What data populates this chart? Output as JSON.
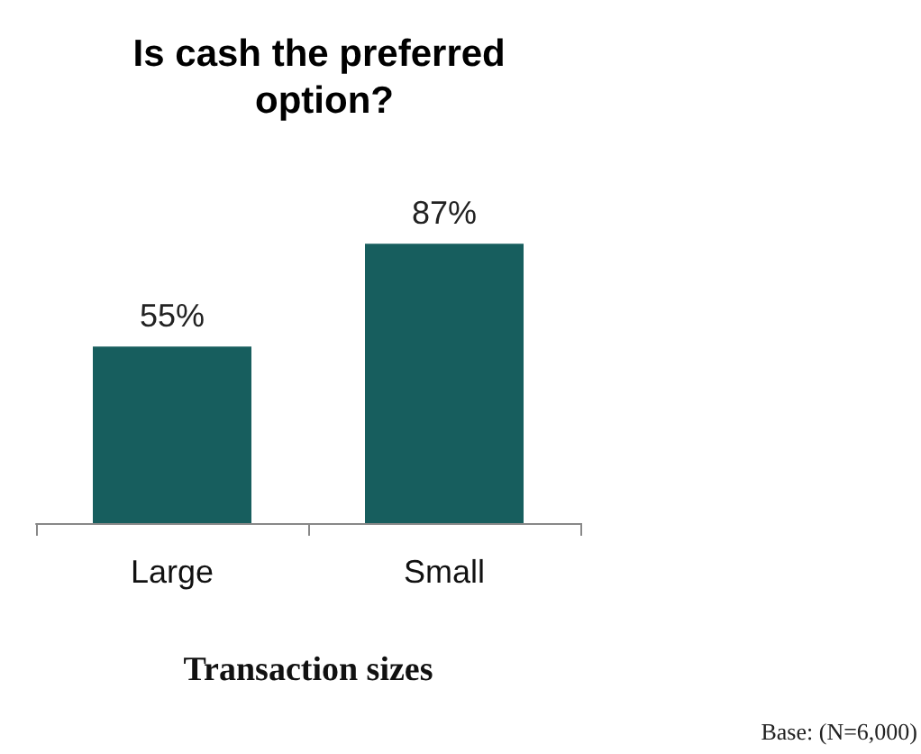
{
  "chart_data": {
    "type": "bar",
    "title": "Is cash the preferred option?",
    "xlabel": "Transaction sizes",
    "annotations": [
      "Base: (N=6,000)"
    ],
    "categories": [
      "Large",
      "Small"
    ],
    "values": [
      55,
      87
    ],
    "color": "#175e5e",
    "value_labels": [
      "55%",
      "87%"
    ]
  }
}
